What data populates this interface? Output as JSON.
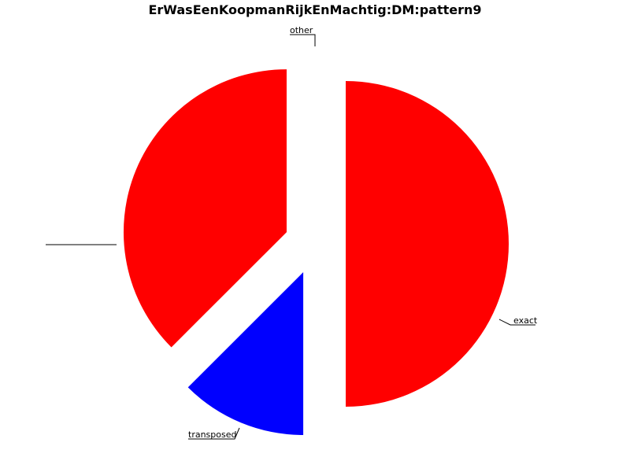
{
  "chart_data": {
    "type": "pie",
    "title": "ErWasEenKoopmanRijkEnMachtig:DM:pattern9",
    "slices": [
      {
        "label": "other",
        "value": 50,
        "color": "#ff0000",
        "exploded": true
      },
      {
        "label": "exact",
        "value": 12.5,
        "color": "#0000ff",
        "exploded": true
      },
      {
        "label": "transposed",
        "value": 37.5,
        "color": "#ff0000",
        "exploded": true
      }
    ],
    "overlapping_labels": [
      "",
      "",
      "",
      "",
      ""
    ],
    "start_angle": "12 o'clock",
    "direction": "clockwise",
    "legend": "none"
  }
}
